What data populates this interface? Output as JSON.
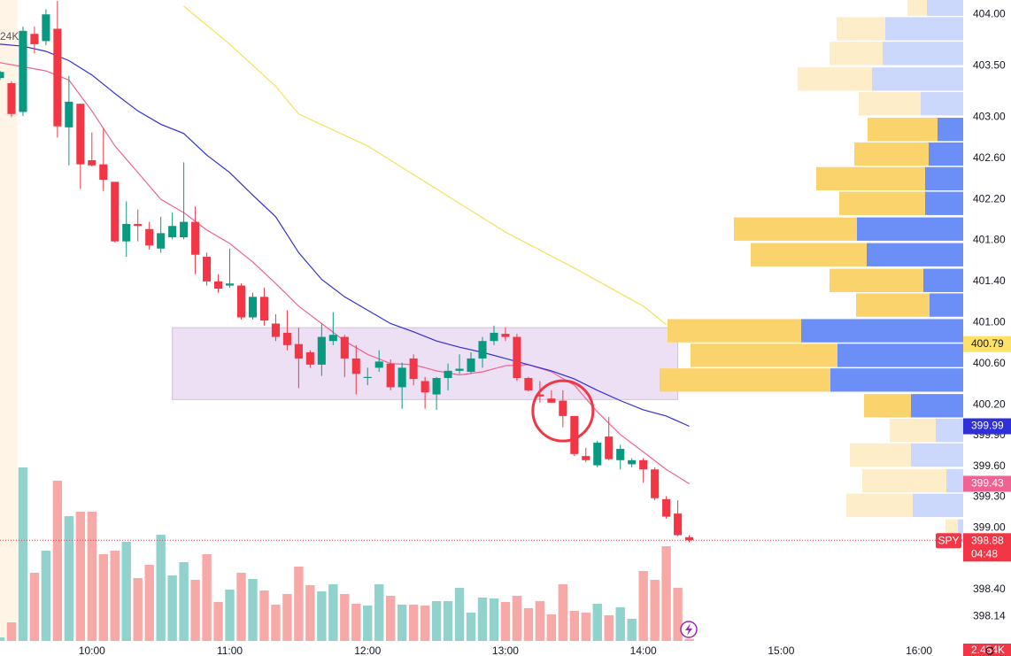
{
  "chart_data": {
    "type": "candlestick",
    "symbol": "SPY",
    "countdown": "04:48",
    "corner_label": "24K",
    "up_color": "#089981",
    "down_color": "#f23645",
    "grid": false,
    "xlim": [
      560,
      980
    ],
    "xticks": [
      {
        "value": 600,
        "label": "10:00"
      },
      {
        "value": 660,
        "label": "11:00"
      },
      {
        "value": 720,
        "label": "12:00"
      },
      {
        "value": 780,
        "label": "13:00"
      },
      {
        "value": 840,
        "label": "14:00"
      },
      {
        "value": 900,
        "label": "15:00"
      },
      {
        "value": 960,
        "label": "16:00"
      }
    ],
    "ylim": [
      397.9,
      404.14
    ],
    "yticks": [
      {
        "value": 404,
        "label": "404.00"
      },
      {
        "value": 403.5,
        "label": "403.50"
      },
      {
        "value": 403,
        "label": "403.00"
      },
      {
        "value": 402.6,
        "label": "402.60"
      },
      {
        "value": 402.2,
        "label": "402.20"
      },
      {
        "value": 401.8,
        "label": "401.80"
      },
      {
        "value": 401.4,
        "label": "401.40"
      },
      {
        "value": 401,
        "label": "401.00"
      },
      {
        "value": 400.6,
        "label": "400.60"
      },
      {
        "value": 400.2,
        "label": "400.20"
      },
      {
        "value": 399.9,
        "label": "399.90"
      },
      {
        "value": 399.6,
        "label": "399.60"
      },
      {
        "value": 399.3,
        "label": "399.30"
      },
      {
        "value": 399,
        "label": "399.00"
      },
      {
        "value": 398.4,
        "label": "398.40"
      },
      398.14
    ],
    "x": [
      560,
      565,
      570,
      575,
      580,
      585,
      590,
      595,
      600,
      605,
      610,
      615,
      620,
      625,
      630,
      635,
      640,
      645,
      650,
      655,
      660,
      665,
      670,
      675,
      680,
      685,
      690,
      695,
      700,
      705,
      710,
      715,
      720,
      725,
      730,
      735,
      740,
      745,
      750,
      755,
      760,
      765,
      770,
      775,
      780,
      785,
      790,
      795,
      800,
      805,
      810,
      815,
      820,
      825,
      830,
      835,
      840,
      845,
      850,
      855,
      860
    ],
    "open": [
      403.38,
      403.33,
      403.05,
      403.81,
      403.74,
      403.86,
      402.9,
      403.13,
      402.58,
      402.54,
      402.37,
      401.79,
      401.96,
      401.91,
      401.72,
      401.83,
      401.83,
      401.98,
      401.64,
      401.4,
      401.36,
      401.36,
      401.05,
      401.25,
      400.99,
      400.9,
      400.79,
      400.71,
      400.59,
      400.82,
      400.86,
      400.65,
      400.46,
      400.56,
      400.6,
      400.37,
      400.65,
      400.43,
      400.3,
      400.46,
      400.53,
      400.52,
      400.65,
      400.82,
      400.89,
      400.86,
      400.46,
      400.3,
      400.26,
      400.24,
      400.09,
      399.7,
      399.61,
      399.89,
      399.66,
      399.62,
      399.66,
      399.57,
      399.28,
      399.14,
      398.91
    ],
    "high": [
      403.45,
      403.35,
      403.88,
      403.88,
      404.05,
      404.13,
      403.4,
      403.13,
      402.85,
      402.89,
      402.37,
      402.18,
      402.1,
      401.98,
      402.03,
      402.07,
      402.56,
      402.13,
      401.68,
      401.47,
      401.72,
      401.38,
      401.29,
      401.34,
      401.08,
      401.12,
      400.95,
      400.73,
      400.99,
      401.1,
      400.88,
      400.78,
      400.56,
      400.73,
      400.64,
      400.61,
      400.69,
      400.47,
      400.47,
      400.6,
      400.69,
      400.71,
      400.86,
      400.97,
      400.95,
      400.89,
      400.47,
      400.43,
      400.34,
      400.34,
      400.09,
      399.78,
      399.85,
      400.08,
      399.81,
      399.68,
      399.68,
      399.59,
      399.31,
      399.27,
      398.93
    ],
    "low": [
      403.36,
      403.0,
      403.01,
      403.62,
      403.7,
      402.8,
      402.53,
      402.3,
      402.52,
      402.28,
      401.78,
      401.64,
      401.79,
      401.71,
      401.68,
      401.81,
      401.81,
      401.47,
      401.36,
      401.29,
      401.34,
      401.03,
      401.03,
      400.97,
      400.82,
      400.73,
      400.36,
      400.56,
      400.48,
      400.78,
      400.47,
      400.3,
      400.39,
      400.52,
      400.34,
      400.16,
      400.39,
      400.16,
      400.15,
      400.34,
      400.5,
      400.5,
      400.56,
      400.78,
      400.82,
      400.43,
      400.33,
      400.22,
      400.22,
      399.98,
      399.7,
      399.64,
      399.59,
      399.66,
      399.57,
      399.59,
      399.44,
      399.27,
      399.09,
      398.92,
      398.86
    ],
    "close": [
      403.44,
      403.03,
      403.84,
      403.71,
      404.0,
      402.91,
      403.15,
      402.54,
      402.53,
      402.39,
      401.79,
      401.96,
      401.94,
      401.75,
      401.87,
      401.94,
      401.98,
      401.66,
      401.4,
      401.33,
      401.38,
      401.05,
      401.25,
      401.02,
      400.86,
      400.78,
      400.65,
      400.59,
      400.86,
      400.88,
      400.65,
      400.5,
      400.47,
      400.62,
      400.37,
      400.56,
      400.45,
      400.32,
      400.46,
      400.53,
      400.55,
      400.65,
      400.82,
      400.9,
      400.86,
      400.46,
      400.34,
      400.28,
      400.22,
      400.09,
      399.72,
      399.66,
      399.83,
      399.67,
      399.77,
      399.66,
      399.57,
      399.29,
      399.11,
      398.93,
      398.88
    ],
    "volume": {
      "values": [
        4,
        21,
        196,
        77,
        102,
        181,
        141,
        146,
        146,
        98,
        102,
        112,
        71,
        86,
        120,
        74,
        89,
        69,
        98,
        44,
        58,
        77,
        70,
        57,
        41,
        53,
        84,
        63,
        56,
        64,
        53,
        42,
        40,
        64,
        51,
        41,
        41,
        40,
        45,
        45,
        60,
        32,
        49,
        48,
        44,
        51,
        37,
        45,
        30,
        64,
        34,
        32,
        42,
        29,
        38,
        25,
        79,
        69,
        107,
        60,
        2.454
      ],
      "last_label": "2.454K",
      "ylim": [
        0,
        724
      ],
      "up_color": "#92d2cc",
      "down_color": "#f7a9a7"
    },
    "moving_averages": [
      {
        "color": "#f06292",
        "x": [
          560,
          570,
          580,
          590,
          600,
          610,
          620,
          630,
          640,
          650,
          660,
          670,
          680,
          690,
          700,
          710,
          720,
          730,
          740,
          750,
          760,
          770,
          780,
          790,
          800,
          810,
          820,
          830,
          840,
          850,
          860
        ],
        "values": [
          403.53,
          403.49,
          403.45,
          403.36,
          403.06,
          402.72,
          402.46,
          402.2,
          402.07,
          401.9,
          401.77,
          401.59,
          401.38,
          401.16,
          400.99,
          400.82,
          400.69,
          400.6,
          400.59,
          400.53,
          400.49,
          400.52,
          400.58,
          400.59,
          400.52,
          400.39,
          400.13,
          399.91,
          399.74,
          399.57,
          399.43
        ]
      },
      {
        "color": "#3030d8",
        "x": [
          560,
          570,
          580,
          590,
          600,
          610,
          620,
          630,
          640,
          650,
          660,
          670,
          680,
          690,
          700,
          710,
          720,
          730,
          740,
          750,
          760,
          770,
          780,
          790,
          800,
          810,
          820,
          830,
          840,
          850,
          860
        ],
        "values": [
          403.71,
          403.69,
          403.64,
          403.55,
          403.41,
          403.23,
          403.06,
          402.93,
          402.84,
          402.63,
          402.46,
          402.24,
          402.03,
          401.68,
          401.42,
          401.25,
          401.12,
          400.99,
          400.91,
          400.82,
          400.76,
          400.71,
          400.65,
          400.59,
          400.53,
          400.45,
          400.34,
          400.24,
          400.15,
          400.09,
          399.99
        ]
      },
      {
        "color": "#f2e35a",
        "x": [
          640,
          660,
          680,
          690,
          720,
          750,
          780,
          810,
          840,
          850
        ],
        "values": [
          404.08,
          403.71,
          403.3,
          403.03,
          402.72,
          402.3,
          401.88,
          401.53,
          401.16,
          400.98
        ]
      }
    ],
    "poc": 400.79,
    "poc_color": "#fde26a",
    "session_open": 570,
    "premarket_color": "#fff4e6",
    "zone": {
      "x": [
        635,
        855
      ],
      "y": [
        400.25,
        400.95
      ],
      "color": "#e7d4f0"
    },
    "circle": {
      "x": 805,
      "y": 400.14,
      "color": "#f23645"
    },
    "volume_profile": {
      "prices": [
        404.1,
        403.86,
        403.62,
        403.37,
        403.13,
        402.88,
        402.64,
        402.4,
        402.16,
        401.91,
        401.66,
        401.41,
        401.17,
        400.92,
        400.68,
        400.44,
        400.19,
        399.95,
        399.71,
        399.46,
        399.22,
        398.97
      ],
      "buy": [
        22,
        55,
        60,
        84,
        70,
        79,
        84,
        123,
        97,
        139,
        131,
        106,
        83,
        151,
        166,
        193,
        53,
        52,
        69,
        95,
        75,
        14
      ],
      "sell": [
        43,
        90,
        93,
        105,
        50,
        31,
        41,
        45,
        45,
        122,
        111,
        47,
        40,
        185,
        144,
        152,
        61,
        33,
        61,
        21,
        59,
        8
      ],
      "xlim": [
        0,
        400
      ],
      "value_area": [
        400.07,
        403.0
      ],
      "buy_color": "#fbd36d",
      "sell_color": "#6b8ef7",
      "faded_buy_color": "#fdedc9",
      "faded_sell_color": "#cbd7fb"
    }
  }
}
